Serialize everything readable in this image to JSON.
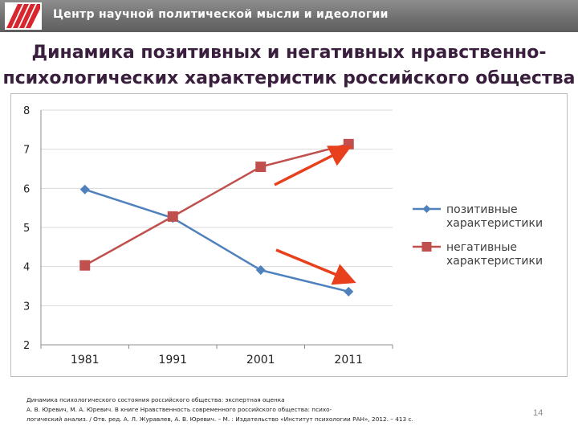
{
  "header": {
    "org_name": "Центр научной политической мысли и идеологии"
  },
  "slide": {
    "title_line1": "Динамика позитивных и негативных нравственно-",
    "title_line2": "психологических  характеристик российского общества",
    "citation_line1": "Динамика психологического состояния российского общества: экспертная оценка",
    "citation_line2": "А. В. Юревич, М. А. Юревич. В книге  Нравственность современного российского общества: психо-",
    "citation_line3": "логический анализ. / Отв. ред. А. Л. Журавлев, А. В. Юревич. – М. : Издательство «Институт психологии РАН», 2012. – 413 с.",
    "page_number": "14"
  },
  "chart_data": {
    "type": "line",
    "categories": [
      "1981",
      "1991",
      "2001",
      "2011"
    ],
    "ylim": [
      2,
      8
    ],
    "yticks": [
      "2",
      "3",
      "4",
      "5",
      "6",
      "7",
      "8"
    ],
    "grid": true,
    "legend_position": "right",
    "series": [
      {
        "name": "позитивные характеристики",
        "values": [
          5.97,
          5.24,
          3.91,
          3.36
        ],
        "color": "#4f81bd",
        "marker": "diamond"
      },
      {
        "name": "негативные характеристики",
        "values": [
          4.03,
          5.28,
          6.55,
          7.13
        ],
        "color": "#c0504d",
        "marker": "square"
      }
    ],
    "annotations": [
      {
        "type": "arrow",
        "direction": "up",
        "color": "#e8401c"
      },
      {
        "type": "arrow",
        "direction": "down",
        "color": "#e8401c"
      }
    ]
  }
}
